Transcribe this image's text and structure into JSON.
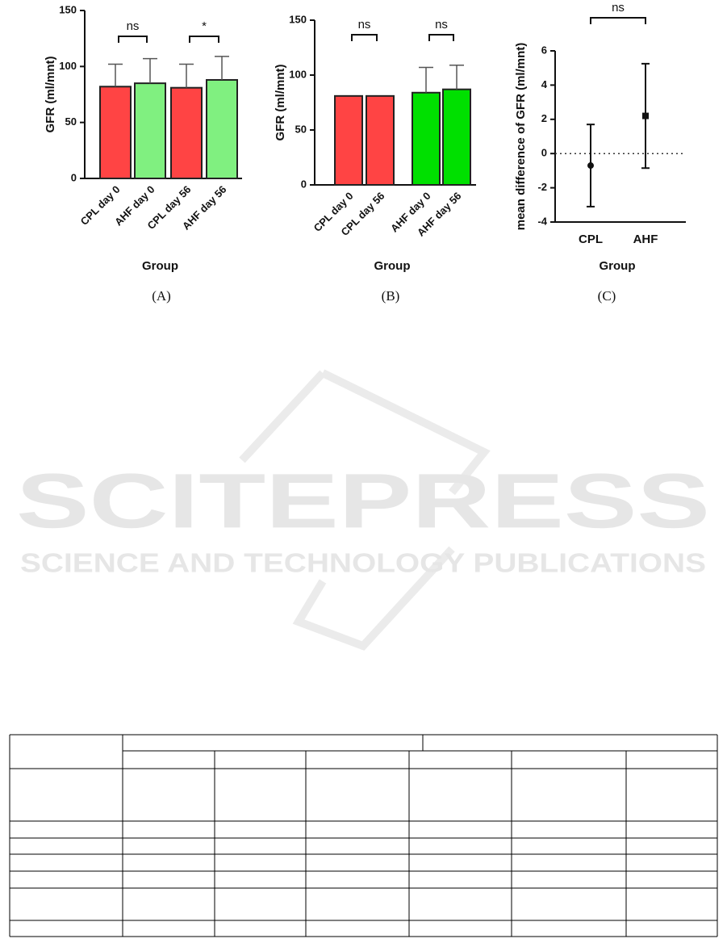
{
  "chart_data": [
    {
      "type": "bar",
      "caption": "(A)",
      "ylabel": "GFR (ml/mnt)",
      "xlabel": "Group",
      "categories": [
        "CPL day 0",
        "AHF day 0",
        "CPL day 56",
        "AHF day 56"
      ],
      "values": [
        82,
        85,
        81,
        88
      ],
      "errors": [
        20,
        22,
        21,
        21
      ],
      "colors": [
        "#ff4444",
        "#80f080",
        "#ff4444",
        "#80f080"
      ],
      "ylim": [
        0,
        150
      ],
      "yticks": [
        0,
        50,
        100,
        150
      ],
      "annotations": [
        "ns",
        "*"
      ]
    },
    {
      "type": "bar",
      "caption": "(B)",
      "ylabel": "GFR (ml/mnt)",
      "xlabel": "Group",
      "categories": [
        "CPL day 0",
        "CPL day 56",
        "AHF day 0",
        "AHF day 56"
      ],
      "values": [
        81,
        81,
        84,
        87
      ],
      "errors": [
        null,
        null,
        23,
        22
      ],
      "colors": [
        "#ff4444",
        "#ff4444",
        "#00e000",
        "#00e000"
      ],
      "ylim": [
        0,
        150
      ],
      "yticks": [
        0,
        50,
        100,
        150
      ],
      "annotations": [
        "ns",
        "ns"
      ]
    },
    {
      "type": "scatter",
      "caption": "(C)",
      "ylabel": "mean difference of GFR (ml/mnt)",
      "xlabel": "Group",
      "categories": [
        "CPL",
        "AHF"
      ],
      "values": [
        -0.7,
        2.2
      ],
      "errors": [
        2.4,
        3.05
      ],
      "markers": [
        "circle",
        "square"
      ],
      "color": "#111111",
      "ylim": [
        -4,
        6
      ],
      "yticks": [
        -4,
        -2,
        0,
        2,
        4,
        6
      ],
      "zero_line": true,
      "annotations": [
        "ns"
      ]
    }
  ],
  "watermark": {
    "title": "SCITEPRESS",
    "subtitle": "SCIENCE AND TECHNOLOGY PUBLICATIONS"
  }
}
